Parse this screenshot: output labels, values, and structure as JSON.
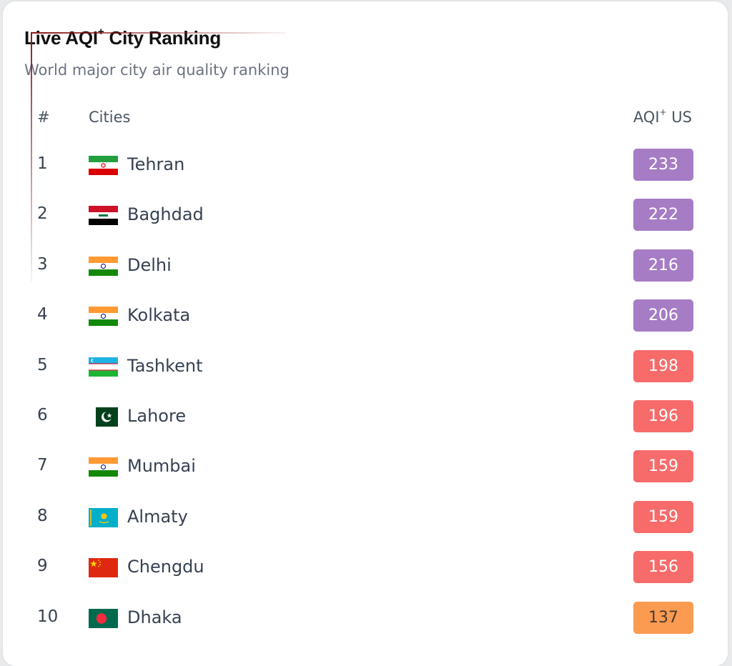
{
  "header": {
    "title_prefix": "Live AQI",
    "title_sup": "+",
    "title_suffix": " City Ranking",
    "subtitle": "World major city air quality ranking"
  },
  "columns": {
    "rank": "#",
    "city": "Cities",
    "aqi_prefix": "AQI",
    "aqi_sup": "+",
    "aqi_suffix": " US"
  },
  "colors": {
    "very_unhealthy": "#a67cc5",
    "unhealthy": "#f76b6b",
    "unhealthy_sensitive": "#fb9b52"
  },
  "rows": [
    {
      "rank": "1",
      "city": "Tehran",
      "aqi": "233",
      "flag": "iran-flag-icon",
      "level": "very_unhealthy"
    },
    {
      "rank": "2",
      "city": "Baghdad",
      "aqi": "222",
      "flag": "iraq-flag-icon",
      "level": "very_unhealthy"
    },
    {
      "rank": "3",
      "city": "Delhi",
      "aqi": "216",
      "flag": "india-flag-icon",
      "level": "very_unhealthy"
    },
    {
      "rank": "4",
      "city": "Kolkata",
      "aqi": "206",
      "flag": "india-flag-icon",
      "level": "very_unhealthy"
    },
    {
      "rank": "5",
      "city": "Tashkent",
      "aqi": "198",
      "flag": "uzbekistan-flag-icon",
      "level": "unhealthy"
    },
    {
      "rank": "6",
      "city": "Lahore",
      "aqi": "196",
      "flag": "pakistan-flag-icon",
      "level": "unhealthy"
    },
    {
      "rank": "7",
      "city": "Mumbai",
      "aqi": "159",
      "flag": "india-flag-icon",
      "level": "unhealthy"
    },
    {
      "rank": "8",
      "city": "Almaty",
      "aqi": "159",
      "flag": "kazakhstan-flag-icon",
      "level": "unhealthy"
    },
    {
      "rank": "9",
      "city": "Chengdu",
      "aqi": "156",
      "flag": "china-flag-icon",
      "level": "unhealthy"
    },
    {
      "rank": "10",
      "city": "Dhaka",
      "aqi": "137",
      "flag": "bangladesh-flag-icon",
      "level": "unhealthy_sensitive"
    }
  ]
}
